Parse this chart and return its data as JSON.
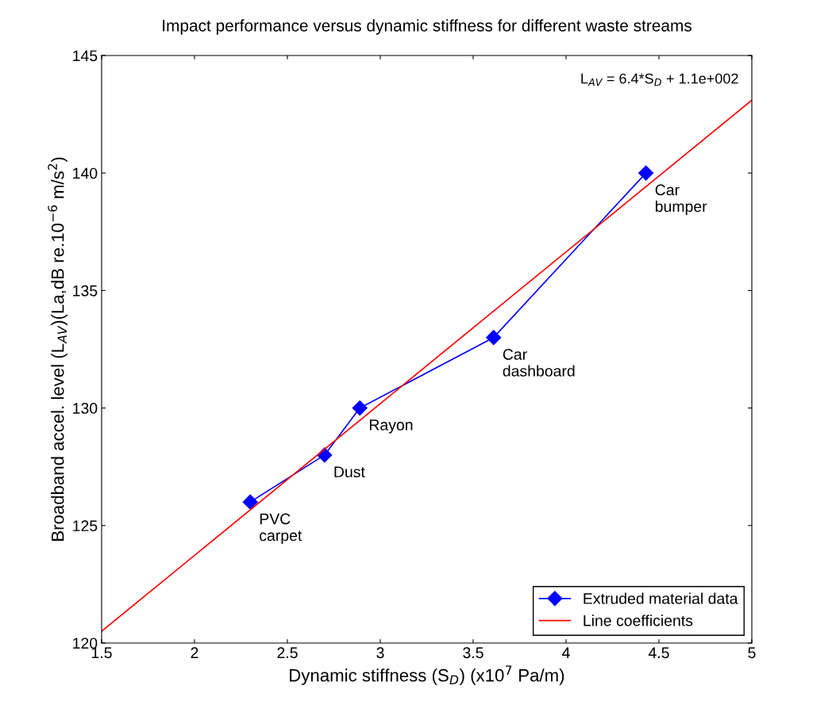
{
  "chart_data": {
    "type": "line",
    "title": "Impact performance versus dynamic stiffness for different waste streams",
    "xlabel": "Dynamic stiffness (S$_{D}$) (x10$^{7}$ Pa/m)",
    "ylabel": "Broadband accel. level (L$_{AV}$)(La,dB re.10$^{−6}$ m/s$^{2}$)",
    "x": [
      2.3,
      2.7,
      2.89,
      3.61,
      4.43
    ],
    "series": [
      {
        "name": "Extruded material data",
        "color": "#0000ff",
        "values": [
          126,
          128,
          130,
          133,
          140
        ],
        "marker": "diamond"
      },
      {
        "name": "Line coefficients",
        "color": "#ff0000",
        "x": [
          1.5,
          5
        ],
        "values": [
          120.5,
          143.1
        ],
        "marker": "none"
      }
    ],
    "annotations": [
      {
        "text": "PVC\ncarpet",
        "x": 2.3,
        "y": 126
      },
      {
        "text": "Dust",
        "x": 2.7,
        "y": 128
      },
      {
        "text": "Rayon",
        "x": 2.89,
        "y": 130
      },
      {
        "text": "Car\ndashboard",
        "x": 3.61,
        "y": 133
      },
      {
        "text": "Car\nbumper",
        "x": 4.43,
        "y": 140
      },
      "L$_{AV}$ = 6.4*S$_{D}$ + 1.1e+002"
    ],
    "xlim": [
      1.5,
      5
    ],
    "ylim": [
      120,
      145
    ],
    "xticks": [
      1.5,
      2,
      2.5,
      3,
      3.5,
      4,
      4.5,
      5
    ],
    "yticks": [
      120,
      125,
      130,
      135,
      140,
      145
    ],
    "legend": "bottom right",
    "line_style": "solid"
  }
}
